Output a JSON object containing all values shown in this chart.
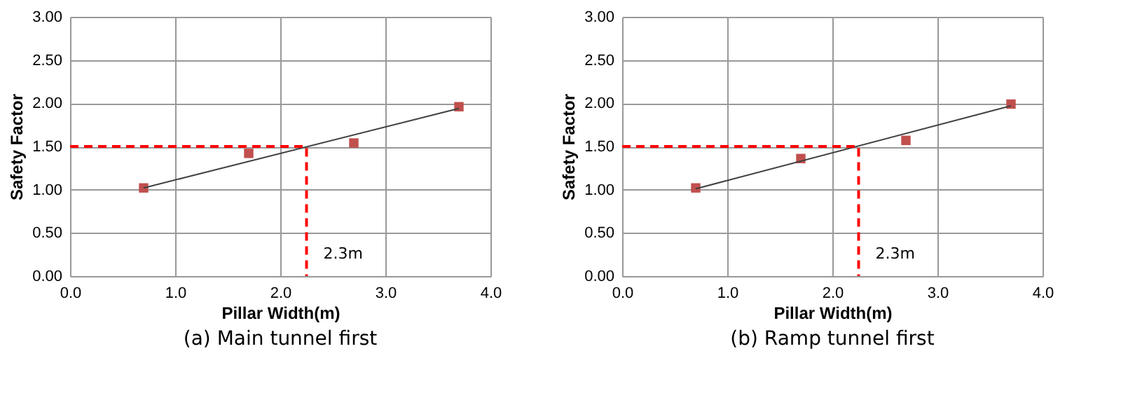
{
  "chart_data": [
    {
      "type": "scatter",
      "title": "(a) Main tunnel first",
      "xlabel": "Pillar Width(m)",
      "ylabel": "Safety Factor",
      "series": [
        {
          "marker": "square",
          "color": "#c0504d",
          "x": [
            0.7,
            1.7,
            2.7,
            3.7
          ],
          "values": [
            1.02,
            1.42,
            1.54,
            1.96
          ]
        },
        {
          "type": "line",
          "line_style": "solid",
          "color": "#404040",
          "x": [
            0.7,
            3.7
          ],
          "values": [
            1.02,
            1.94
          ]
        },
        {
          "type": "line",
          "line_style": "dashed",
          "color": "#ff0000",
          "x": [
            0,
            2.25,
            2.25
          ],
          "values": [
            1.5,
            1.5,
            0
          ]
        }
      ],
      "annotations": [
        {
          "text": "2.3m",
          "x": 2.25,
          "y": 0.25
        }
      ],
      "xlim": [
        0,
        4
      ],
      "ylim": [
        0,
        3
      ],
      "xticks": [
        {
          "value": 0,
          "label": "0.0"
        },
        {
          "value": 1,
          "label": "1.0"
        },
        {
          "value": 2,
          "label": "2.0"
        },
        {
          "value": 3,
          "label": "3.0"
        },
        {
          "value": 4,
          "label": "4.0"
        }
      ],
      "yticks": [
        {
          "value": 0,
          "label": "0.00"
        },
        {
          "value": 0.5,
          "label": "0.50"
        },
        {
          "value": 1,
          "label": "1.00"
        },
        {
          "value": 1.5,
          "label": "1.50"
        },
        {
          "value": 2,
          "label": "2.00"
        },
        {
          "value": 2.5,
          "label": "2.50"
        },
        {
          "value": 3,
          "label": "3.00"
        }
      ],
      "grid": true
    },
    {
      "type": "scatter",
      "title": "(b) Ramp tunnel first",
      "xlabel": "Pillar Width(m)",
      "ylabel": "Safety Factor",
      "series": [
        {
          "marker": "square",
          "color": "#c0504d",
          "x": [
            0.7,
            1.7,
            2.7,
            3.7
          ],
          "values": [
            1.02,
            1.36,
            1.57,
            1.99
          ]
        },
        {
          "type": "line",
          "line_style": "solid",
          "color": "#404040",
          "x": [
            0.7,
            3.7
          ],
          "values": [
            1.01,
            1.97
          ]
        },
        {
          "type": "line",
          "line_style": "dashed",
          "color": "#ff0000",
          "x": [
            0,
            2.25,
            2.25
          ],
          "values": [
            1.5,
            1.5,
            0
          ]
        }
      ],
      "annotations": [
        {
          "text": "2.3m",
          "x": 2.25,
          "y": 0.25
        }
      ],
      "xlim": [
        0,
        4
      ],
      "ylim": [
        0,
        3
      ],
      "xticks": [
        {
          "value": 0,
          "label": "0.0"
        },
        {
          "value": 1,
          "label": "1.0"
        },
        {
          "value": 2,
          "label": "2.0"
        },
        {
          "value": 3,
          "label": "3.0"
        },
        {
          "value": 4,
          "label": "4.0"
        }
      ],
      "yticks": [
        {
          "value": 0,
          "label": "0.00"
        },
        {
          "value": 0.5,
          "label": "0.50"
        },
        {
          "value": 1,
          "label": "1.00"
        },
        {
          "value": 1.5,
          "label": "1.50"
        },
        {
          "value": 2,
          "label": "2.00"
        },
        {
          "value": 2.5,
          "label": "2.50"
        },
        {
          "value": 3,
          "label": "3.00"
        }
      ],
      "grid": true
    }
  ]
}
